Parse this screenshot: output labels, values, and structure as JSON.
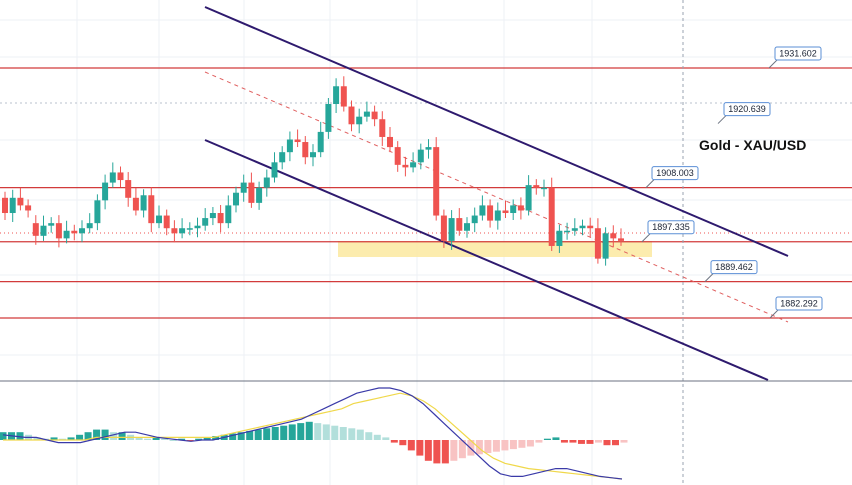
{
  "chart_data": {
    "type": "candlestick",
    "title": "Gold - XAU/USD",
    "colors": {
      "up": "#26a69a",
      "down": "#ef5350",
      "level_line": "#d23b3b",
      "channel": "#2e1a6e",
      "support_zone": "#fbe9a0",
      "macd_line": "#3a3aa8",
      "signal_line": "#f0d84a",
      "hist_up_strong": "#26a69a",
      "hist_up_weak": "#b2dfdb",
      "hist_down_strong": "#ef5350",
      "hist_down_weak": "#f8c3c3",
      "label_border": "#5b8fd6",
      "grid": "#edf0f5"
    },
    "horizontal_levels": [
      {
        "label": "1931.602",
        "value": 1931.602
      },
      {
        "label": "1920.639",
        "value": 1920.639
      },
      {
        "label": "1908.003",
        "value": 1908.003
      },
      {
        "label": "1897.335",
        "value": 1897.335
      },
      {
        "label": "1889.462",
        "value": 1889.462
      },
      {
        "label": "1882.292",
        "value": 1882.292
      }
    ],
    "candles": [
      {
        "o": 1906.0,
        "c": 1903.0
      },
      {
        "o": 1903.0,
        "c": 1906.0
      },
      {
        "o": 1906.0,
        "c": 1904.5
      },
      {
        "o": 1904.5,
        "c": 1903.5
      },
      {
        "o": 1901.0,
        "c": 1898.5
      },
      {
        "o": 1898.5,
        "c": 1900.5
      },
      {
        "o": 1900.5,
        "c": 1901.0
      },
      {
        "o": 1901.0,
        "c": 1898.0
      },
      {
        "o": 1898.0,
        "c": 1899.5
      },
      {
        "o": 1899.5,
        "c": 1899.0
      },
      {
        "o": 1899.0,
        "c": 1900.0
      },
      {
        "o": 1900.0,
        "c": 1901.0
      },
      {
        "o": 1901.0,
        "c": 1905.5
      },
      {
        "o": 1905.5,
        "c": 1909.0
      },
      {
        "o": 1909.0,
        "c": 1911.0
      },
      {
        "o": 1911.0,
        "c": 1909.5
      },
      {
        "o": 1909.5,
        "c": 1906.0
      },
      {
        "o": 1906.0,
        "c": 1903.5
      },
      {
        "o": 1903.5,
        "c": 1906.5
      },
      {
        "o": 1906.5,
        "c": 1901.0
      },
      {
        "o": 1901.0,
        "c": 1902.5
      },
      {
        "o": 1902.5,
        "c": 1900.0
      },
      {
        "o": 1900.0,
        "c": 1899.0
      },
      {
        "o": 1899.0,
        "c": 1900.0
      },
      {
        "o": 1900.0,
        "c": 1900.0
      },
      {
        "o": 1900.0,
        "c": 1900.5
      },
      {
        "o": 1900.5,
        "c": 1902.0
      },
      {
        "o": 1902.0,
        "c": 1903.0
      },
      {
        "o": 1903.0,
        "c": 1901.0
      },
      {
        "o": 1901.0,
        "c": 1904.5
      },
      {
        "o": 1904.5,
        "c": 1907.0
      },
      {
        "o": 1907.0,
        "c": 1909.0
      },
      {
        "o": 1909.0,
        "c": 1905.0
      },
      {
        "o": 1905.0,
        "c": 1908.0
      },
      {
        "o": 1908.0,
        "c": 1910.0
      },
      {
        "o": 1910.0,
        "c": 1913.0
      },
      {
        "o": 1913.0,
        "c": 1915.0
      },
      {
        "o": 1915.0,
        "c": 1917.5
      },
      {
        "o": 1917.5,
        "c": 1917.0
      },
      {
        "o": 1917.0,
        "c": 1914.0
      },
      {
        "o": 1914.0,
        "c": 1915.0
      },
      {
        "o": 1915.0,
        "c": 1919.0
      },
      {
        "o": 1919.0,
        "c": 1924.5
      },
      {
        "o": 1924.5,
        "c": 1928.0
      },
      {
        "o": 1928.0,
        "c": 1924.0
      },
      {
        "o": 1924.0,
        "c": 1920.5
      },
      {
        "o": 1920.5,
        "c": 1922.0
      },
      {
        "o": 1922.0,
        "c": 1923.0
      },
      {
        "o": 1923.0,
        "c": 1921.5
      },
      {
        "o": 1921.5,
        "c": 1918.0
      },
      {
        "o": 1918.0,
        "c": 1916.0
      },
      {
        "o": 1916.0,
        "c": 1912.5
      },
      {
        "o": 1912.5,
        "c": 1912.0
      },
      {
        "o": 1912.0,
        "c": 1913.0
      },
      {
        "o": 1913.0,
        "c": 1915.5
      },
      {
        "o": 1915.5,
        "c": 1916.0
      },
      {
        "o": 1916.0,
        "c": 1902.5
      },
      {
        "o": 1902.5,
        "c": 1897.5
      },
      {
        "o": 1897.5,
        "c": 1902.0
      },
      {
        "o": 1902.0,
        "c": 1899.5
      },
      {
        "o": 1899.5,
        "c": 1901.0
      },
      {
        "o": 1901.0,
        "c": 1902.5
      },
      {
        "o": 1902.5,
        "c": 1904.5
      },
      {
        "o": 1904.5,
        "c": 1901.5
      },
      {
        "o": 1901.5,
        "c": 1903.5
      },
      {
        "o": 1903.5,
        "c": 1903.0
      },
      {
        "o": 1903.0,
        "c": 1904.5
      },
      {
        "o": 1904.5,
        "c": 1903.5
      },
      {
        "o": 1903.5,
        "c": 1908.5
      },
      {
        "o": 1908.5,
        "c": 1908.0
      },
      {
        "o": 1908.0,
        "c": 1908.0
      },
      {
        "o": 1908.0,
        "c": 1896.5
      },
      {
        "o": 1896.5,
        "c": 1899.5
      },
      {
        "o": 1899.5,
        "c": 1899.5
      },
      {
        "o": 1899.5,
        "c": 1900.0
      },
      {
        "o": 1900.0,
        "c": 1900.5
      },
      {
        "o": 1900.5,
        "c": 1900.0
      },
      {
        "o": 1900.0,
        "c": 1894.0
      },
      {
        "o": 1894.0,
        "c": 1899.0
      },
      {
        "o": 1899.0,
        "c": 1898.0
      },
      {
        "o": 1898.0,
        "c": 1897.5
      }
    ],
    "macd": {
      "histogram": [
        3,
        3,
        3,
        2,
        1,
        0.5,
        1,
        0.5,
        1,
        2,
        3,
        4,
        4,
        3,
        3,
        2,
        1,
        0.5,
        1,
        0.5,
        0,
        0.5,
        -0.5,
        0.5,
        1,
        1.5,
        2,
        2.5,
        3,
        3.5,
        4,
        4.5,
        5,
        5.5,
        6,
        6.5,
        7,
        6.5,
        6,
        5.5,
        5,
        4.5,
        4,
        3,
        2,
        1,
        -1,
        -2,
        -4,
        -6,
        -8,
        -9,
        -9,
        -8,
        -7,
        -6,
        -5.5,
        -5,
        -4.5,
        -4,
        -3.5,
        -3,
        -2.5,
        -1,
        0.5,
        1,
        -1,
        -1,
        -1.5,
        -1.5,
        -1,
        -2,
        -2,
        -1
      ],
      "macd_line": [
        2,
        1.5,
        1,
        1,
        0,
        -1,
        -1,
        -1,
        0,
        1,
        2,
        3,
        3,
        2,
        1,
        0.5,
        0,
        -0.5,
        0,
        0,
        1,
        2,
        3,
        4,
        5,
        6,
        7,
        8,
        10,
        12,
        14,
        16,
        18,
        19,
        20,
        20,
        19,
        17,
        14,
        10,
        6,
        2,
        -2,
        -6,
        -10,
        -13,
        -14,
        -14,
        -13,
        -12,
        -11,
        -11,
        -12,
        -13,
        -14,
        -14.5,
        -15
      ],
      "signal_line": [
        0,
        0,
        0,
        0,
        0,
        0,
        0,
        0,
        1,
        1,
        1,
        1,
        1,
        1,
        1,
        1,
        1,
        1,
        1,
        2,
        3,
        4,
        5,
        6,
        7,
        8,
        9,
        10,
        11,
        12,
        14,
        15,
        16,
        17,
        18,
        17,
        15,
        12,
        8,
        4,
        0,
        -4,
        -7,
        -9,
        -10,
        -11,
        -11.5,
        -12,
        -12.5,
        -13,
        -13.5,
        -14,
        -14.5,
        -15
      ]
    }
  }
}
